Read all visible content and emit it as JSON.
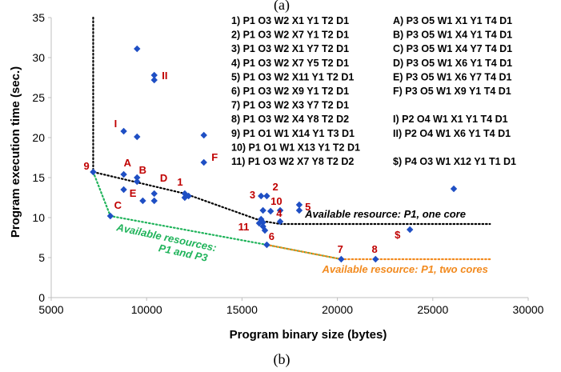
{
  "figure": {
    "caption_top": "(a)",
    "caption_bottom": "(b)"
  },
  "chart_data": {
    "type": "scatter",
    "xlabel": "Program binary size (bytes)",
    "ylabel": "Program execution time (sec.)",
    "xlim": [
      5000,
      30000
    ],
    "ylim": [
      0,
      35
    ],
    "x_ticks": [
      5000,
      10000,
      15000,
      20000,
      25000,
      30000
    ],
    "y_ticks": [
      0,
      5,
      10,
      15,
      20,
      25,
      30,
      35
    ],
    "grid": false,
    "colors": {
      "points": "#1f4fc4",
      "labels": "#c00000",
      "one_core": "#000000",
      "two_cores": "#f28a1e",
      "p1p3": "#1fb35a"
    },
    "points": [
      {
        "x": 9500,
        "y": 31.1
      },
      {
        "x": 10400,
        "y": 27.8
      },
      {
        "x": 10400,
        "y": 27.2
      },
      {
        "x": 8800,
        "y": 20.8
      },
      {
        "x": 9500,
        "y": 20.1
      },
      {
        "x": 13000,
        "y": 20.3
      },
      {
        "x": 13000,
        "y": 16.9
      },
      {
        "x": 7200,
        "y": 15.7
      },
      {
        "x": 8800,
        "y": 15.4
      },
      {
        "x": 9500,
        "y": 15.0
      },
      {
        "x": 9500,
        "y": 14.5
      },
      {
        "x": 8800,
        "y": 13.5
      },
      {
        "x": 10400,
        "y": 13.0
      },
      {
        "x": 9800,
        "y": 12.1
      },
      {
        "x": 10400,
        "y": 12.1
      },
      {
        "x": 12000,
        "y": 13.0
      },
      {
        "x": 12000,
        "y": 12.5
      },
      {
        "x": 12200,
        "y": 12.7
      },
      {
        "x": 8100,
        "y": 10.2
      },
      {
        "x": 16000,
        "y": 12.7
      },
      {
        "x": 16300,
        "y": 12.7
      },
      {
        "x": 16100,
        "y": 10.9
      },
      {
        "x": 16500,
        "y": 10.8
      },
      {
        "x": 17000,
        "y": 10.9
      },
      {
        "x": 18000,
        "y": 11.6
      },
      {
        "x": 18000,
        "y": 10.9
      },
      {
        "x": 16000,
        "y": 9.8
      },
      {
        "x": 16100,
        "y": 9.4
      },
      {
        "x": 15900,
        "y": 9.3
      },
      {
        "x": 16100,
        "y": 8.9
      },
      {
        "x": 16200,
        "y": 8.4
      },
      {
        "x": 17000,
        "y": 9.5
      },
      {
        "x": 16300,
        "y": 6.6
      },
      {
        "x": 20200,
        "y": 4.8
      },
      {
        "x": 22000,
        "y": 4.8
      },
      {
        "x": 23800,
        "y": 8.5
      },
      {
        "x": 26100,
        "y": 13.6
      }
    ],
    "point_labels": [
      {
        "text": "II",
        "x": 10800,
        "y": 27.3
      },
      {
        "text": "I",
        "x": 8300,
        "y": 21.3
      },
      {
        "text": "F",
        "x": 13400,
        "y": 17.1
      },
      {
        "text": "9",
        "x": 6700,
        "y": 16.0
      },
      {
        "text": "A",
        "x": 8800,
        "y": 16.4
      },
      {
        "text": "B",
        "x": 9600,
        "y": 15.5
      },
      {
        "text": "D",
        "x": 10700,
        "y": 14.5
      },
      {
        "text": "1",
        "x": 11600,
        "y": 14.0
      },
      {
        "text": "E",
        "x": 9100,
        "y": 12.6
      },
      {
        "text": "C",
        "x": 8300,
        "y": 11.1
      },
      {
        "text": "2",
        "x": 16600,
        "y": 13.4
      },
      {
        "text": "3",
        "x": 15400,
        "y": 12.4
      },
      {
        "text": "10",
        "x": 16500,
        "y": 11.6
      },
      {
        "text": "5",
        "x": 18300,
        "y": 10.9
      },
      {
        "text": "4",
        "x": 16800,
        "y": 10.1
      },
      {
        "text": "11",
        "x": 14800,
        "y": 8.4
      },
      {
        "text": "6",
        "x": 16400,
        "y": 7.2
      },
      {
        "text": "7",
        "x": 20000,
        "y": 5.6
      },
      {
        "text": "8",
        "x": 21800,
        "y": 5.6
      },
      {
        "text": "$",
        "x": 23000,
        "y": 7.4
      }
    ],
    "frontiers": [
      {
        "name": "Available resource: P1, one core",
        "color": "#000000",
        "points": [
          [
            7200,
            35
          ],
          [
            7200,
            15.7
          ],
          [
            12000,
            13.0
          ],
          [
            16000,
            9.6
          ],
          [
            17000,
            9.2
          ],
          [
            28000,
            9.2
          ]
        ]
      },
      {
        "name": "Available resources: P1 and P3",
        "color": "#1fb35a",
        "points": [
          [
            7200,
            15.7
          ],
          [
            8100,
            10.2
          ],
          [
            16300,
            6.6
          ],
          [
            20200,
            4.8
          ]
        ]
      },
      {
        "name": "Available resource: P1, two cores",
        "color": "#f28a1e",
        "points": [
          [
            16300,
            6.6
          ],
          [
            20200,
            4.8
          ],
          [
            28000,
            4.8
          ]
        ]
      }
    ],
    "annotations": [
      {
        "text": "Available resource: P1, one core",
        "x": 18300,
        "y": 10.0,
        "color": "#000000"
      },
      {
        "text": "Available resources:",
        "x": 8400,
        "y": 8.4,
        "color": "#1fb35a",
        "rotate": 12
      },
      {
        "text": "P1 and P3",
        "x": 10600,
        "y": 5.8,
        "color": "#1fb35a",
        "rotate": 12
      },
      {
        "text": "Available resource:  P1, two cores",
        "x": 19200,
        "y": 3.1,
        "color": "#f28a1e"
      }
    ],
    "legend": {
      "placement": "top-right",
      "left_column": [
        "1)    P1 O3 W2   X1 Y1 T2 D1",
        "2)    P1 O3 W2   X7 Y1 T2 D1",
        "3)    P1 O3 W2   X1 Y7 T2 D1",
        "4)    P1 O3 W2   X7 Y5 T2 D1",
        "5)    P1 O3 W2 X11 Y1 T2 D1",
        "6)    P1 O3 W2   X9 Y1 T2 D1",
        "7)    P1 O3 W2   X3 Y7 T2 D1",
        "8)    P1 O3 W2   X4 Y8 T2 D2",
        "9)    P1 O1 W1 X14 Y1 T3 D1",
        "10)  P1 O1 W1 X13 Y1 T2 D1",
        "11)  P1 O3 W2   X7 Y8 T2 D2"
      ],
      "right_column": [
        "A)  P3 O5 W1 X1 Y1 T4 D1",
        "B)  P3 O5 W1 X4 Y1 T4 D1",
        "C)  P3 O5 W1 X4 Y7 T4 D1",
        "D)  P3 O5 W1 X6 Y1 T4 D1",
        "E)  P3 O5 W1 X6 Y7 T4 D1",
        "F)  P3 O5 W1 X9 Y1 T4 D1",
        "",
        "I)    P2 O4 W1   X1 Y1 T4 D1",
        "II)   P2 O4 W1   X6 Y1 T4 D1",
        "",
        "$)  P4 O3 W1 X12 Y1 T1 D1"
      ]
    }
  }
}
